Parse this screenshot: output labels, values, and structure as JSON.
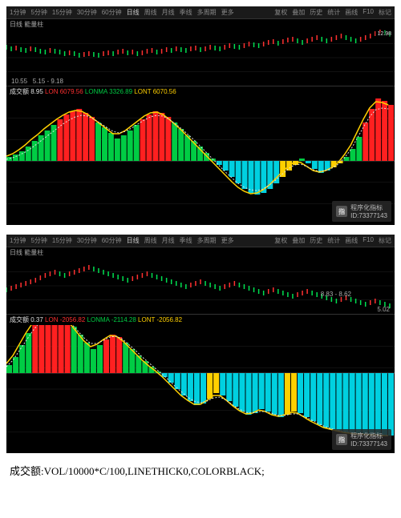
{
  "colors": {
    "bg": "#000000",
    "panel_bg": "#1a1a1a",
    "grid": "#222222",
    "text": "#888888",
    "price_line": "#e8e8e8",
    "candle_up": "#ff3030",
    "candle_dn": "#00e050",
    "bar_green": "#00cc44",
    "bar_red": "#ff2020",
    "bar_cyan": "#00d0e0",
    "bar_yellow": "#ffd000",
    "ma_yellow": "#ffd000",
    "ma_white": "#e0e0e0"
  },
  "toolbar": {
    "left": [
      "1分钟",
      "5分钟",
      "15分钟",
      "30分钟",
      "60分钟",
      "日线",
      "周线",
      "月线",
      "季线",
      "多周期",
      "更多"
    ],
    "right": [
      "复权",
      "叠加",
      "历史",
      "统计",
      "画线",
      "F10",
      "标记"
    ]
  },
  "chart1": {
    "info": "日线 能量柱",
    "price_right_top": "12.98",
    "date_range": "5.15 - 9.18",
    "price_lo_hi": "10.55",
    "legend": {
      "prefix": "成交额",
      "val": "8.95",
      "LON": "6079.56",
      "LONMA": "3326.89",
      "LONT": "6070.56"
    },
    "price_series": [
      48,
      46,
      47,
      45,
      44,
      46,
      45,
      43,
      42,
      44,
      43,
      42,
      40,
      41,
      40,
      38,
      39,
      40,
      39,
      38,
      40,
      41,
      40,
      42,
      43,
      41,
      42,
      40,
      41,
      43,
      44,
      42,
      43,
      45,
      44,
      46,
      45,
      44,
      46,
      47,
      45,
      46,
      48,
      47,
      46,
      48,
      50,
      49,
      48,
      50,
      52,
      51,
      50,
      52,
      54,
      55,
      53,
      55,
      57,
      58,
      56,
      54,
      56,
      58,
      60,
      58,
      56,
      58,
      60,
      62,
      60,
      58,
      56,
      58,
      60,
      62,
      65,
      68,
      66,
      64
    ],
    "vol_baseline": 80,
    "vol_bars": [
      {
        "v": 5,
        "c": "g"
      },
      {
        "v": 8,
        "c": "g"
      },
      {
        "v": 12,
        "c": "g"
      },
      {
        "v": 18,
        "c": "g"
      },
      {
        "v": 25,
        "c": "g"
      },
      {
        "v": 32,
        "c": "g"
      },
      {
        "v": 38,
        "c": "g"
      },
      {
        "v": 45,
        "c": "g"
      },
      {
        "v": 52,
        "c": "r"
      },
      {
        "v": 58,
        "c": "r"
      },
      {
        "v": 62,
        "c": "r"
      },
      {
        "v": 65,
        "c": "r"
      },
      {
        "v": 60,
        "c": "r"
      },
      {
        "v": 55,
        "c": "r"
      },
      {
        "v": 48,
        "c": "g"
      },
      {
        "v": 42,
        "c": "g"
      },
      {
        "v": 35,
        "c": "g"
      },
      {
        "v": 28,
        "c": "g"
      },
      {
        "v": 32,
        "c": "g"
      },
      {
        "v": 38,
        "c": "g"
      },
      {
        "v": 45,
        "c": "g"
      },
      {
        "v": 52,
        "c": "r"
      },
      {
        "v": 58,
        "c": "r"
      },
      {
        "v": 62,
        "c": "r"
      },
      {
        "v": 60,
        "c": "r"
      },
      {
        "v": 55,
        "c": "r"
      },
      {
        "v": 48,
        "c": "g"
      },
      {
        "v": 40,
        "c": "g"
      },
      {
        "v": 32,
        "c": "g"
      },
      {
        "v": 25,
        "c": "g"
      },
      {
        "v": 18,
        "c": "g"
      },
      {
        "v": 10,
        "c": "g"
      },
      {
        "v": 3,
        "c": "g"
      },
      {
        "v": -5,
        "c": "c"
      },
      {
        "v": -12,
        "c": "c"
      },
      {
        "v": -20,
        "c": "c"
      },
      {
        "v": -28,
        "c": "c"
      },
      {
        "v": -35,
        "c": "c"
      },
      {
        "v": -40,
        "c": "c"
      },
      {
        "v": -42,
        "c": "c"
      },
      {
        "v": -40,
        "c": "c"
      },
      {
        "v": -35,
        "c": "c"
      },
      {
        "v": -28,
        "c": "c"
      },
      {
        "v": -20,
        "c": "y"
      },
      {
        "v": -12,
        "c": "y"
      },
      {
        "v": -5,
        "c": "y"
      },
      {
        "v": 3,
        "c": "g"
      },
      {
        "v": -3,
        "c": "c"
      },
      {
        "v": -10,
        "c": "c"
      },
      {
        "v": -15,
        "c": "c"
      },
      {
        "v": -12,
        "c": "c"
      },
      {
        "v": -8,
        "c": "y"
      },
      {
        "v": -3,
        "c": "y"
      },
      {
        "v": 5,
        "c": "g"
      },
      {
        "v": 15,
        "c": "g"
      },
      {
        "v": 30,
        "c": "g"
      },
      {
        "v": 48,
        "c": "r"
      },
      {
        "v": 65,
        "c": "r"
      },
      {
        "v": 78,
        "c": "r"
      },
      {
        "v": 75,
        "c": "r"
      },
      {
        "v": 70,
        "c": "r"
      }
    ],
    "ma_line": [
      6,
      9,
      14,
      20,
      27,
      33,
      40,
      46,
      52,
      57,
      61,
      63,
      62,
      58,
      52,
      46,
      40,
      34,
      34,
      38,
      44,
      50,
      56,
      60,
      61,
      58,
      52,
      45,
      38,
      30,
      22,
      14,
      6,
      -2,
      -10,
      -18,
      -26,
      -33,
      -38,
      -41,
      -40,
      -36,
      -30,
      -22,
      -14,
      -7,
      -1,
      -2,
      -7,
      -12,
      -14,
      -12,
      -8,
      -2,
      8,
      20,
      36,
      52,
      66,
      74,
      73,
      70
    ],
    "ma_white": [
      2,
      4,
      7,
      11,
      16,
      22,
      28,
      34,
      40,
      46,
      51,
      55,
      57,
      56,
      52,
      47,
      42,
      37,
      35,
      37,
      41,
      46,
      51,
      55,
      57,
      56,
      52,
      46,
      40,
      33,
      26,
      18,
      10,
      2,
      -6,
      -14,
      -21,
      -28,
      -33,
      -36,
      -37,
      -35,
      -30,
      -24,
      -17,
      -10,
      -5,
      -4,
      -7,
      -11,
      -13,
      -12,
      -9,
      -4,
      4,
      14,
      28,
      42,
      55,
      64,
      66,
      65
    ],
    "watermark": {
      "logo": "指",
      "title": "程序化指标",
      "id": "ID:73377143"
    }
  },
  "chart2": {
    "info": "日线 能量柱",
    "price_right_top": "",
    "date_range": "8.83 - 8.62",
    "price_lo_hi": "5.02",
    "legend": {
      "prefix": "成交额",
      "val": "0.37",
      "LON": "-2056.82",
      "LONMA": "-2114.28",
      "LONT": "-2056.82"
    },
    "price_series": [
      30,
      32,
      34,
      36,
      38,
      40,
      42,
      45,
      48,
      50,
      52,
      50,
      48,
      50,
      52,
      54,
      56,
      58,
      56,
      54,
      52,
      50,
      48,
      46,
      44,
      42,
      44,
      46,
      48,
      50,
      48,
      46,
      44,
      42,
      40,
      38,
      36,
      34,
      36,
      38,
      40,
      38,
      36,
      34,
      32,
      34,
      36,
      38,
      36,
      34,
      32,
      30,
      28,
      26,
      28,
      30,
      28,
      26,
      24,
      22,
      24,
      26,
      28,
      26,
      24,
      22,
      20,
      18,
      16,
      18,
      20,
      18,
      16,
      14,
      12,
      14,
      16,
      14,
      12,
      10
    ],
    "vol_baseline": 60,
    "vol_bars": [
      {
        "v": 10,
        "c": "g"
      },
      {
        "v": 20,
        "c": "g"
      },
      {
        "v": 35,
        "c": "g"
      },
      {
        "v": 50,
        "c": "g"
      },
      {
        "v": 62,
        "c": "r"
      },
      {
        "v": 72,
        "c": "r"
      },
      {
        "v": 78,
        "c": "r"
      },
      {
        "v": 80,
        "c": "r"
      },
      {
        "v": 75,
        "c": "r"
      },
      {
        "v": 68,
        "c": "r"
      },
      {
        "v": 58,
        "c": "g"
      },
      {
        "v": 48,
        "c": "g"
      },
      {
        "v": 38,
        "c": "g"
      },
      {
        "v": 30,
        "c": "g"
      },
      {
        "v": 35,
        "c": "g"
      },
      {
        "v": 42,
        "c": "r"
      },
      {
        "v": 48,
        "c": "r"
      },
      {
        "v": 45,
        "c": "r"
      },
      {
        "v": 38,
        "c": "g"
      },
      {
        "v": 30,
        "c": "g"
      },
      {
        "v": 22,
        "c": "g"
      },
      {
        "v": 15,
        "c": "g"
      },
      {
        "v": 8,
        "c": "g"
      },
      {
        "v": 2,
        "c": "g"
      },
      {
        "v": -5,
        "c": "c"
      },
      {
        "v": -12,
        "c": "c"
      },
      {
        "v": -20,
        "c": "c"
      },
      {
        "v": -28,
        "c": "c"
      },
      {
        "v": -35,
        "c": "c"
      },
      {
        "v": -40,
        "c": "c"
      },
      {
        "v": -38,
        "c": "c"
      },
      {
        "v": -32,
        "c": "y"
      },
      {
        "v": -25,
        "c": "y"
      },
      {
        "v": -28,
        "c": "c"
      },
      {
        "v": -35,
        "c": "c"
      },
      {
        "v": -42,
        "c": "c"
      },
      {
        "v": -48,
        "c": "c"
      },
      {
        "v": -52,
        "c": "c"
      },
      {
        "v": -50,
        "c": "c"
      },
      {
        "v": -45,
        "c": "c"
      },
      {
        "v": -48,
        "c": "c"
      },
      {
        "v": -52,
        "c": "c"
      },
      {
        "v": -55,
        "c": "c"
      },
      {
        "v": -52,
        "c": "y"
      },
      {
        "v": -48,
        "c": "y"
      },
      {
        "v": -50,
        "c": "c"
      },
      {
        "v": -55,
        "c": "c"
      },
      {
        "v": -60,
        "c": "c"
      },
      {
        "v": -65,
        "c": "c"
      },
      {
        "v": -68,
        "c": "c"
      },
      {
        "v": -70,
        "c": "c"
      },
      {
        "v": -72,
        "c": "c"
      },
      {
        "v": -74,
        "c": "c"
      },
      {
        "v": -75,
        "c": "c"
      },
      {
        "v": -76,
        "c": "c"
      },
      {
        "v": -76,
        "c": "c"
      },
      {
        "v": -77,
        "c": "c"
      },
      {
        "v": -77,
        "c": "c"
      },
      {
        "v": -78,
        "c": "c"
      },
      {
        "v": -78,
        "c": "c"
      }
    ],
    "ma_line": [
      12,
      22,
      36,
      50,
      62,
      71,
      77,
      79,
      76,
      70,
      60,
      50,
      40,
      33,
      36,
      42,
      47,
      46,
      40,
      32,
      24,
      16,
      9,
      3,
      -4,
      -12,
      -20,
      -28,
      -34,
      -39,
      -39,
      -34,
      -28,
      -28,
      -34,
      -41,
      -47,
      -51,
      -50,
      -46,
      -48,
      -52,
      -54,
      -52,
      -49,
      -50,
      -55,
      -60,
      -64,
      -68,
      -70,
      -72,
      -74,
      -75,
      -76,
      -76,
      -77,
      -77,
      -78,
      -78
    ],
    "ma_white": [
      8,
      16,
      28,
      40,
      52,
      62,
      70,
      74,
      74,
      70,
      62,
      53,
      44,
      37,
      37,
      41,
      45,
      46,
      42,
      35,
      28,
      20,
      13,
      6,
      -1,
      -8,
      -16,
      -23,
      -30,
      -35,
      -37,
      -35,
      -31,
      -30,
      -34,
      -40,
      -45,
      -49,
      -50,
      -48,
      -48,
      -50,
      -53,
      -53,
      -51,
      -51,
      -54,
      -58,
      -62,
      -66,
      -69,
      -71,
      -73,
      -74,
      -75,
      -76,
      -76,
      -77,
      -77,
      -78
    ],
    "watermark": {
      "logo": "指",
      "title": "程序化指标",
      "id": "ID:73377143"
    }
  },
  "footer": "成交额:VOL/10000*C/100,LINETHICK0,COLORBLACK;"
}
